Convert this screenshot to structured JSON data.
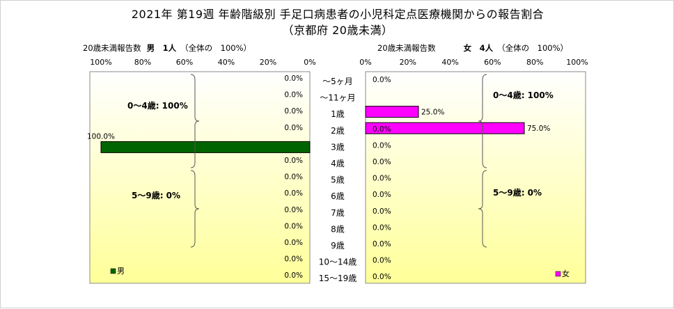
{
  "title": "2021年 第19週 年齢階級別 手足口病患者の小児科定点医療機関からの報告割合",
  "subtitle": "（京都府 20歳未満）",
  "male_header": {
    "prefix": "20歳未満報告数",
    "sex_count": "男　1人",
    "note": "（全体の　100%）"
  },
  "female_header": {
    "prefix": "20歳未満報告数",
    "sex_count": "女　4人",
    "note": "（全体の　100%）"
  },
  "colors": {
    "male": "#006400",
    "female": "#ff00ff",
    "plot_top": "#ffffff",
    "plot_bottom": "#ffff99"
  },
  "chart_data": [
    {
      "type": "bar",
      "name_label": "男",
      "orientation": "horizontal-reversed",
      "categories": [
        "～5ヶ月",
        "～11ヶ月",
        "1歳",
        "2歳",
        "3歳",
        "4歳",
        "5歳",
        "6歳",
        "7歳",
        "8歳",
        "9歳",
        "10～14歳",
        "15～19歳"
      ],
      "values": [
        0.0,
        0.0,
        0.0,
        0.0,
        100.0,
        0.0,
        0.0,
        0.0,
        0.0,
        0.0,
        0.0,
        0.0,
        0.0
      ],
      "value_labels": [
        "0.0%",
        "0.0%",
        "0.0%",
        "0.0%",
        "100.0%",
        "0.0%",
        "0.0%",
        "0.0%",
        "0.0%",
        "0.0%",
        "0.0%",
        "0.0%",
        "0.0%"
      ],
      "xlim": [
        0,
        100
      ],
      "ticks": [
        "100%",
        "80%",
        "60%",
        "40%",
        "20%",
        "0%"
      ],
      "legend": "男",
      "groups": [
        {
          "label": "0～4歳: 100%"
        },
        {
          "label": "5～9歳: 0%"
        }
      ]
    },
    {
      "type": "bar",
      "name_label": "女",
      "orientation": "horizontal",
      "categories": [
        "～5ヶ月",
        "～11ヶ月",
        "1歳",
        "2歳",
        "3歳",
        "4歳",
        "5歳",
        "6歳",
        "7歳",
        "8歳",
        "9歳",
        "10～14歳",
        "15～19歳"
      ],
      "values": [
        0.0,
        25.0,
        75.0,
        0.0,
        0.0,
        0.0,
        0.0,
        0.0,
        0.0,
        0.0,
        0.0,
        0.0,
        0.0
      ],
      "value_labels": [
        "0.0%",
        "25.0%",
        "75.0%",
        "0.0%",
        "0.0%",
        "0.0%",
        "0.0%",
        "0.0%",
        "0.0%",
        "0.0%",
        "0.0%",
        "0.0%",
        "0.0%"
      ],
      "xlim": [
        0,
        100
      ],
      "ticks": [
        "0%",
        "20%",
        "40%",
        "60%",
        "80%",
        "100%"
      ],
      "legend": "女",
      "groups": [
        {
          "label": "0～4歳: 100%"
        },
        {
          "label": "5～9歳: 0%"
        }
      ]
    }
  ]
}
